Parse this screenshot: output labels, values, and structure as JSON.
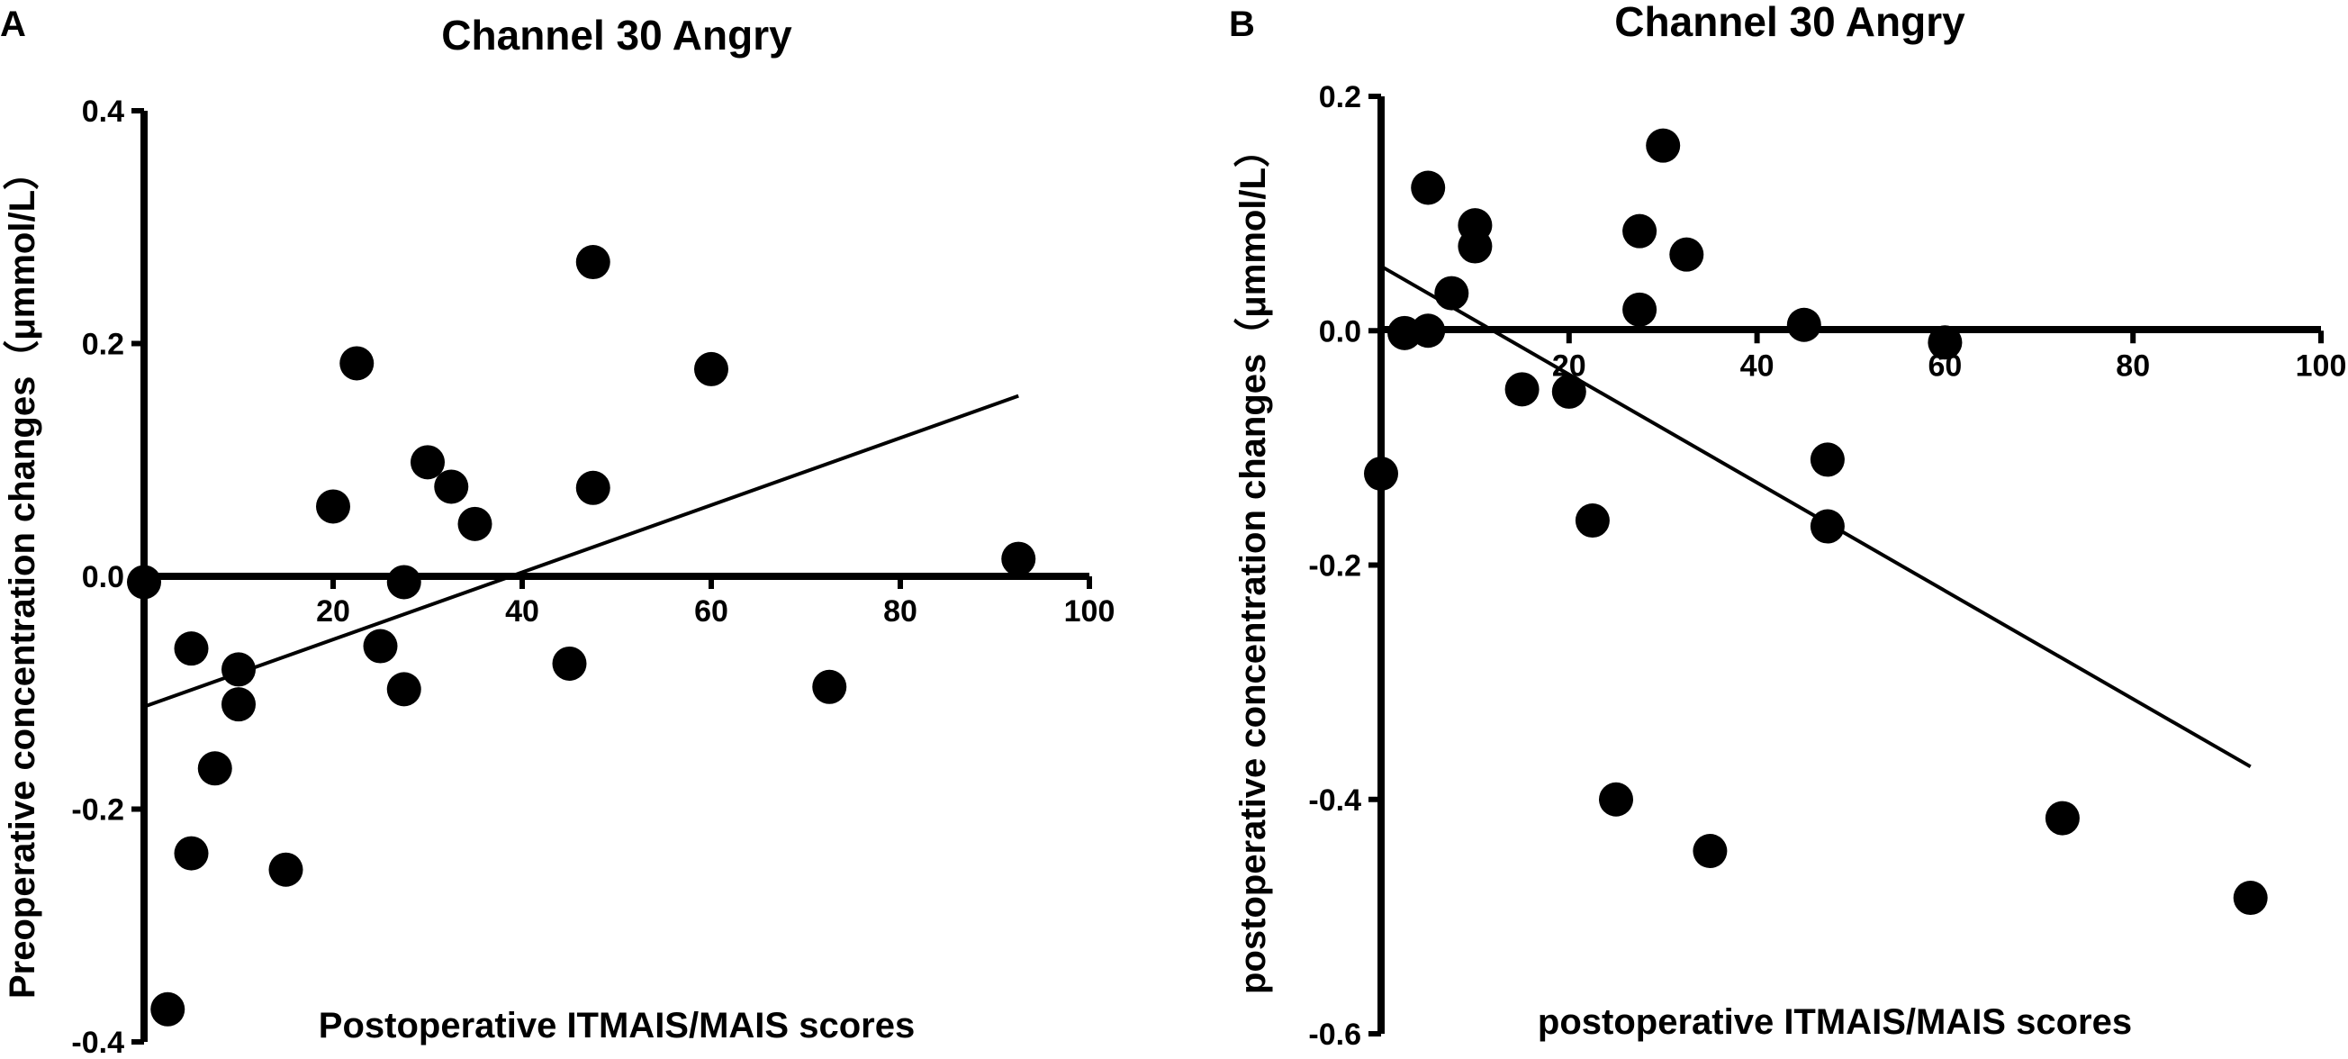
{
  "chart_data": [
    {
      "panel": "A",
      "type": "scatter",
      "title": "Channel 30 Angry",
      "xlabel": "Postoperative ITMAIS/MAIS scores",
      "ylabel": "Preoperative concentration changes（μmmol/L）",
      "xlim": [
        0,
        100
      ],
      "ylim": [
        -0.4,
        0.4
      ],
      "x_ticks": [
        20,
        40,
        60,
        80,
        100
      ],
      "y_ticks": [
        -0.4,
        -0.2,
        0.0,
        0.2,
        0.4
      ],
      "x_tick_labels": [
        "20",
        "40",
        "60",
        "80",
        "100"
      ],
      "y_tick_labels": [
        "-0.4",
        "-0.2",
        "0.0",
        "0.2",
        "0.4"
      ],
      "points": [
        {
          "x": 0,
          "y": -0.005
        },
        {
          "x": 2.5,
          "y": -0.372
        },
        {
          "x": 5,
          "y": -0.062
        },
        {
          "x": 5,
          "y": -0.238
        },
        {
          "x": 7.5,
          "y": -0.165
        },
        {
          "x": 10,
          "y": -0.08
        },
        {
          "x": 10,
          "y": -0.11
        },
        {
          "x": 15,
          "y": -0.252
        },
        {
          "x": 20,
          "y": 0.06
        },
        {
          "x": 22.5,
          "y": 0.183
        },
        {
          "x": 25,
          "y": -0.06
        },
        {
          "x": 27.5,
          "y": -0.005
        },
        {
          "x": 27.5,
          "y": -0.097
        },
        {
          "x": 30,
          "y": 0.098
        },
        {
          "x": 32.5,
          "y": 0.077
        },
        {
          "x": 35,
          "y": 0.045
        },
        {
          "x": 45,
          "y": -0.075
        },
        {
          "x": 47.5,
          "y": 0.27
        },
        {
          "x": 47.5,
          "y": 0.076
        },
        {
          "x": 60,
          "y": 0.178
        },
        {
          "x": 72.5,
          "y": -0.095
        },
        {
          "x": 92.5,
          "y": 0.015
        }
      ],
      "fit_line": {
        "x": [
          0,
          92.5
        ],
        "y": [
          -0.112,
          0.155
        ]
      }
    },
    {
      "panel": "B",
      "type": "scatter",
      "title": "Channel 30 Angry",
      "xlabel": "postoperative ITMAIS/MAIS scores",
      "ylabel": "postoperative concentration changes（μmmol/L）",
      "xlim": [
        0,
        100
      ],
      "ylim": [
        -0.6,
        0.2
      ],
      "x_ticks": [
        20,
        40,
        60,
        80,
        100
      ],
      "y_ticks": [
        -0.6,
        -0.4,
        -0.2,
        0.0,
        0.2
      ],
      "x_tick_labels": [
        "20",
        "40",
        "60",
        "80",
        "100"
      ],
      "y_tick_labels": [
        "-0.6",
        "-0.4",
        "-0.2",
        "0.0",
        "0.2"
      ],
      "points": [
        {
          "x": 0,
          "y": -0.122
        },
        {
          "x": 2.5,
          "y": -0.002
        },
        {
          "x": 5,
          "y": 0.122
        },
        {
          "x": 5,
          "y": 0.0
        },
        {
          "x": 7.5,
          "y": 0.032
        },
        {
          "x": 10,
          "y": 0.09
        },
        {
          "x": 10,
          "y": 0.072
        },
        {
          "x": 15,
          "y": -0.05
        },
        {
          "x": 20,
          "y": -0.052
        },
        {
          "x": 22.5,
          "y": -0.162
        },
        {
          "x": 25,
          "y": -0.4
        },
        {
          "x": 27.5,
          "y": 0.085
        },
        {
          "x": 27.5,
          "y": 0.018
        },
        {
          "x": 30,
          "y": 0.158
        },
        {
          "x": 32.5,
          "y": 0.065
        },
        {
          "x": 35,
          "y": -0.444
        },
        {
          "x": 45,
          "y": 0.005
        },
        {
          "x": 47.5,
          "y": -0.11
        },
        {
          "x": 47.5,
          "y": -0.167
        },
        {
          "x": 60,
          "y": -0.01
        },
        {
          "x": 72.5,
          "y": -0.416
        },
        {
          "x": 92.5,
          "y": -0.484
        }
      ],
      "fit_line": {
        "x": [
          0,
          92.5
        ],
        "y": [
          0.055,
          -0.372
        ]
      }
    }
  ]
}
